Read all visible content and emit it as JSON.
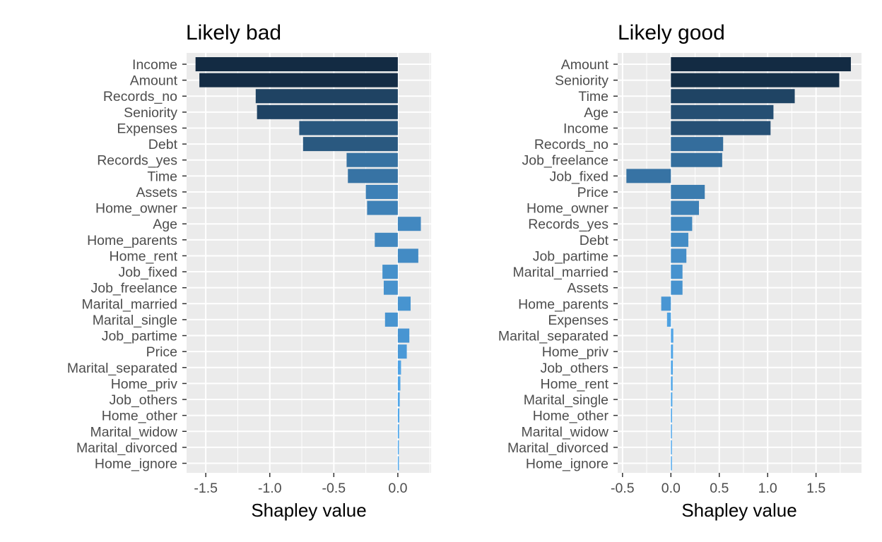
{
  "chart_data": [
    {
      "type": "bar",
      "orientation": "horizontal",
      "title": "Likely bad",
      "xlabel": "Shapley value",
      "ylabel": "",
      "xlim": [
        -1.65,
        0.26
      ],
      "xticks": [
        -1.5,
        -1.0,
        -0.5,
        0.0
      ],
      "xtick_labels": [
        "-1.5",
        "-1.0",
        "-0.5",
        "0.0"
      ],
      "grid": true,
      "legend": "none",
      "color_low": "#132B43",
      "color_high": "#56B1F7",
      "bars": [
        {
          "label": "Income",
          "value": -1.58
        },
        {
          "label": "Amount",
          "value": -1.55
        },
        {
          "label": "Records_no",
          "value": -1.11
        },
        {
          "label": "Seniority",
          "value": -1.1
        },
        {
          "label": "Expenses",
          "value": -0.77
        },
        {
          "label": "Debt",
          "value": -0.74
        },
        {
          "label": "Records_yes",
          "value": -0.4
        },
        {
          "label": "Time",
          "value": -0.39
        },
        {
          "label": "Assets",
          "value": -0.25
        },
        {
          "label": "Home_owner",
          "value": -0.24
        },
        {
          "label": "Age",
          "value": 0.18
        },
        {
          "label": "Home_parents",
          "value": -0.18
        },
        {
          "label": "Home_rent",
          "value": 0.16
        },
        {
          "label": "Job_fixed",
          "value": -0.12
        },
        {
          "label": "Job_freelance",
          "value": -0.11
        },
        {
          "label": "Marital_married",
          "value": 0.1
        },
        {
          "label": "Marital_single",
          "value": -0.1
        },
        {
          "label": "Job_partime",
          "value": 0.09
        },
        {
          "label": "Price",
          "value": 0.07
        },
        {
          "label": "Marital_separated",
          "value": 0.025
        },
        {
          "label": "Home_priv",
          "value": 0.02
        },
        {
          "label": "Job_others",
          "value": 0.015
        },
        {
          "label": "Home_other",
          "value": 0.012
        },
        {
          "label": "Marital_widow",
          "value": 0.01
        },
        {
          "label": "Marital_divorced",
          "value": 0.008
        },
        {
          "label": "Home_ignore",
          "value": 0.006
        }
      ]
    },
    {
      "type": "bar",
      "orientation": "horizontal",
      "title": "Likely good",
      "xlabel": "Shapley value",
      "ylabel": "",
      "xlim": [
        -0.55,
        1.97
      ],
      "xticks": [
        -0.5,
        0.0,
        0.5,
        1.0,
        1.5
      ],
      "xtick_labels": [
        "-0.5",
        "0.0",
        "0.5",
        "1.0",
        "1.5"
      ],
      "grid": true,
      "legend": "none",
      "color_low": "#132B43",
      "color_high": "#56B1F7",
      "bars": [
        {
          "label": "Amount",
          "value": 1.86
        },
        {
          "label": "Seniority",
          "value": 1.74
        },
        {
          "label": "Time",
          "value": 1.28
        },
        {
          "label": "Age",
          "value": 1.06
        },
        {
          "label": "Income",
          "value": 1.03
        },
        {
          "label": "Records_no",
          "value": 0.54
        },
        {
          "label": "Job_freelance",
          "value": 0.53
        },
        {
          "label": "Job_fixed",
          "value": -0.46
        },
        {
          "label": "Price",
          "value": 0.35
        },
        {
          "label": "Home_owner",
          "value": 0.29
        },
        {
          "label": "Records_yes",
          "value": 0.22
        },
        {
          "label": "Debt",
          "value": 0.18
        },
        {
          "label": "Job_partime",
          "value": 0.16
        },
        {
          "label": "Marital_married",
          "value": 0.12
        },
        {
          "label": "Assets",
          "value": 0.12
        },
        {
          "label": "Home_parents",
          "value": -0.1
        },
        {
          "label": "Expenses",
          "value": -0.04
        },
        {
          "label": "Marital_separated",
          "value": 0.025
        },
        {
          "label": "Home_priv",
          "value": 0.022
        },
        {
          "label": "Job_others",
          "value": 0.02
        },
        {
          "label": "Home_rent",
          "value": 0.018
        },
        {
          "label": "Marital_single",
          "value": 0.015
        },
        {
          "label": "Home_other",
          "value": 0.012
        },
        {
          "label": "Marital_widow",
          "value": 0.01
        },
        {
          "label": "Marital_divorced",
          "value": 0.008
        },
        {
          "label": "Home_ignore",
          "value": 0.006
        }
      ]
    }
  ]
}
